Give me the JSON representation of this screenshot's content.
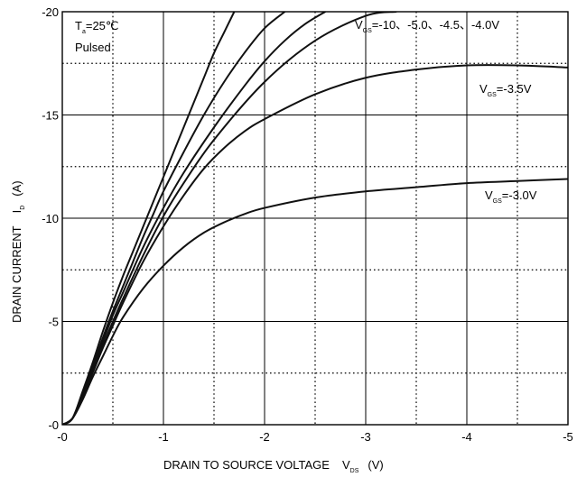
{
  "chart_data": {
    "type": "line",
    "x_axis": {
      "label": "DRAIN TO SOURCE VOLTAGE",
      "symbol_main": "V",
      "symbol_sub": "DS",
      "unit": "(V)",
      "range": [
        0,
        -5
      ],
      "ticks": [
        "-0",
        "-1",
        "-2",
        "-3",
        "-4",
        "-5"
      ]
    },
    "y_axis": {
      "label": "DRAIN CURRENT",
      "symbol_main": "I",
      "symbol_sub": "D",
      "unit": "(A)",
      "range": [
        0,
        -20
      ],
      "ticks": [
        "-0",
        "-5",
        "-10",
        "-15",
        "-20"
      ]
    },
    "grid": true,
    "conditions": {
      "ta_main": "T",
      "ta_sub": "a",
      "ta_value": "=25℃",
      "mode": "Pulsed"
    },
    "labels": {
      "top": {
        "main": "V",
        "sub": "GS",
        "value": "=-10、-5.0、-4.5、-4.0V"
      },
      "mid": {
        "main": "V",
        "sub": "GS",
        "value": "=-3.5V"
      },
      "low": {
        "main": "V",
        "sub": "GS",
        "value": "=-3.0V"
      }
    },
    "series": [
      {
        "x": [
          0,
          -0.1,
          -0.2,
          -0.3,
          -0.4,
          -0.5,
          -0.6,
          -0.7,
          -0.8,
          -0.9,
          -1.0,
          -1.1,
          -1.2,
          -1.3,
          -1.4,
          -1.5,
          -1.6,
          -1.7
        ],
        "y": [
          0,
          -0.3,
          -1.6,
          -3.0,
          -4.5,
          -5.9,
          -7.2,
          -8.4,
          -9.6,
          -10.8,
          -12.0,
          -13.2,
          -14.4,
          -15.6,
          -16.8,
          -18.0,
          -19.0,
          -20.0
        ]
      },
      {
        "x": [
          0,
          -0.1,
          -0.2,
          -0.3,
          -0.4,
          -0.5,
          -0.6,
          -0.7,
          -0.8,
          -0.9,
          -1.0,
          -1.2,
          -1.4,
          -1.6,
          -1.8,
          -2.0,
          -2.2
        ],
        "y": [
          0,
          -0.3,
          -1.5,
          -2.8,
          -4.2,
          -5.5,
          -6.7,
          -7.9,
          -9.1,
          -10.2,
          -11.3,
          -13.2,
          -15.0,
          -16.6,
          -18.0,
          -19.2,
          -20.0
        ]
      },
      {
        "x": [
          0,
          -0.1,
          -0.2,
          -0.3,
          -0.4,
          -0.5,
          -0.6,
          -0.8,
          -1.0,
          -1.2,
          -1.5,
          -1.8,
          -2.0,
          -2.2,
          -2.4,
          -2.6
        ],
        "y": [
          0,
          -0.3,
          -1.5,
          -2.7,
          -4.0,
          -5.3,
          -6.4,
          -8.6,
          -10.5,
          -12.2,
          -14.4,
          -16.4,
          -17.6,
          -18.6,
          -19.4,
          -20.0
        ]
      },
      {
        "x": [
          0,
          -0.1,
          -0.2,
          -0.3,
          -0.4,
          -0.5,
          -0.6,
          -0.8,
          -1.0,
          -1.2,
          -1.5,
          -2.0,
          -2.5,
          -3.0,
          -3.3
        ],
        "y": [
          0,
          -0.3,
          -1.4,
          -2.6,
          -3.8,
          -5.0,
          -6.1,
          -8.2,
          -10.1,
          -11.7,
          -13.8,
          -16.6,
          -18.6,
          -19.8,
          -20.0
        ]
      },
      {
        "x": [
          0,
          -0.1,
          -0.2,
          -0.3,
          -0.4,
          -0.5,
          -0.6,
          -0.8,
          -1.0,
          -1.2,
          -1.4,
          -1.6,
          -1.8,
          -2.0,
          -2.5,
          -3.0,
          -3.5,
          -4.0,
          -4.5,
          -5.0
        ],
        "y": [
          0,
          -0.3,
          -1.3,
          -2.5,
          -3.7,
          -4.8,
          -5.9,
          -7.9,
          -9.6,
          -11.1,
          -12.4,
          -13.4,
          -14.2,
          -14.8,
          -16.0,
          -16.8,
          -17.2,
          -17.4,
          -17.4,
          -17.3
        ]
      },
      {
        "x": [
          0,
          -0.1,
          -0.2,
          -0.3,
          -0.4,
          -0.5,
          -0.6,
          -0.8,
          -1.0,
          -1.2,
          -1.4,
          -1.6,
          -1.8,
          -2.0,
          -2.5,
          -3.0,
          -3.5,
          -4.0,
          -4.5,
          -5.0
        ],
        "y": [
          0,
          -0.3,
          -1.2,
          -2.3,
          -3.3,
          -4.3,
          -5.2,
          -6.6,
          -7.7,
          -8.6,
          -9.3,
          -9.8,
          -10.2,
          -10.5,
          -11.0,
          -11.3,
          -11.5,
          -11.7,
          -11.8,
          -11.9
        ]
      }
    ]
  }
}
